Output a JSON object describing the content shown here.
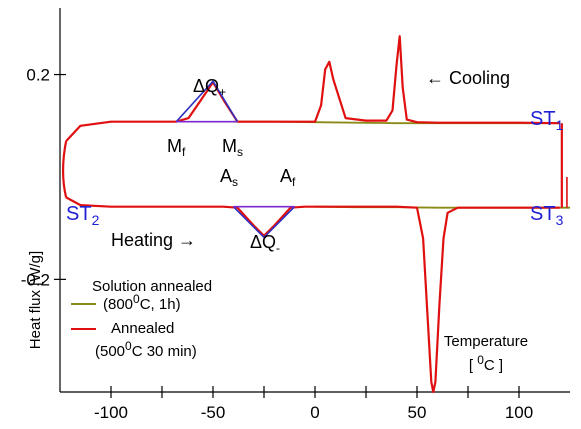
{
  "chart_data": {
    "type": "line",
    "xlabel": "Temperature",
    "xlabel_unit": "[ 0C ]",
    "ylabel": "Heat flux [W/g]",
    "xlim": [
      -125,
      125
    ],
    "ylim": [
      -0.42,
      0.33
    ],
    "x_ticks": [
      -100,
      -50,
      0,
      50,
      100
    ],
    "x_tick_labels": [
      "-100",
      "-50",
      "0",
      "50",
      "100"
    ],
    "y_ticks": [
      0.2,
      -0.2
    ],
    "y_tick_labels": [
      "0.2",
      "-0.2"
    ],
    "colors": {
      "annealed": "#e01010",
      "solution_annealed": "#8a8a16",
      "triangle": "#3030c0",
      "baseline": "#7a2ad0",
      "label_blue": "#1f1fd6"
    },
    "series": [
      {
        "name": "Annealed (500 0C 30 min)",
        "color": "#e01010",
        "cooling_x": [
          120,
          100,
          80,
          60,
          50,
          45,
          43,
          41.5,
          40,
          38,
          35,
          25,
          15,
          9,
          7,
          5,
          3,
          0,
          -10,
          -25,
          -38,
          -44,
          -50,
          -56,
          -62,
          -68,
          -80,
          -100,
          -115,
          -122
        ],
        "cooling_y": [
          0.105,
          0.106,
          0.106,
          0.106,
          0.107,
          0.112,
          0.175,
          0.275,
          0.22,
          0.13,
          0.11,
          0.11,
          0.115,
          0.19,
          0.225,
          0.21,
          0.14,
          0.108,
          0.108,
          0.108,
          0.108,
          0.145,
          0.185,
          0.15,
          0.115,
          0.108,
          0.108,
          0.108,
          0.1,
          0.07
        ],
        "heating_x": [
          -122,
          -115,
          -100,
          -80,
          -60,
          -45,
          -38,
          -30,
          -25,
          -20,
          -12,
          -5,
          0,
          20,
          40,
          50,
          53,
          55,
          57,
          58,
          59,
          61,
          63,
          65,
          70,
          80,
          100,
          120
        ],
        "heating_y": [
          -0.04,
          -0.055,
          -0.058,
          -0.058,
          -0.058,
          -0.058,
          -0.06,
          -0.095,
          -0.115,
          -0.095,
          -0.06,
          -0.058,
          -0.058,
          -0.058,
          -0.058,
          -0.06,
          -0.12,
          -0.26,
          -0.4,
          -0.42,
          -0.4,
          -0.25,
          -0.12,
          -0.07,
          -0.06,
          -0.06,
          -0.06,
          -0.06
        ]
      },
      {
        "name": "Solution annealed (800 0C, 1h)",
        "color": "#8a8a16",
        "cooling_x": [
          -40,
          -20,
          0,
          20,
          40,
          60,
          80,
          100,
          120
        ],
        "cooling_y": [
          0.108,
          0.108,
          0.107,
          0.106,
          0.105,
          0.105,
          0.105,
          0.105,
          0.105
        ],
        "heating_x": [
          0,
          20,
          40,
          60,
          80,
          100,
          125
        ],
        "heating_y": [
          -0.058,
          -0.059,
          -0.059,
          -0.06,
          -0.06,
          -0.06,
          -0.06
        ]
      }
    ],
    "annotations": {
      "dq_plus": "ΔQ₊",
      "dq_minus": "ΔQ₋",
      "mf": "Mf",
      "ms": "Ms",
      "as": "As",
      "af": "Af",
      "cooling": "←  Cooling",
      "heating": "Heating  →",
      "st1": "ST1",
      "st2": "ST2",
      "st3": "ST3"
    },
    "legend": {
      "position": "lower-left",
      "entry1_line1": "Solution annealed",
      "entry1_line2": "(800 0C, 1h)",
      "entry2_line1": "Annealed",
      "entry2_line2": "(500 0C 30 min)"
    }
  }
}
